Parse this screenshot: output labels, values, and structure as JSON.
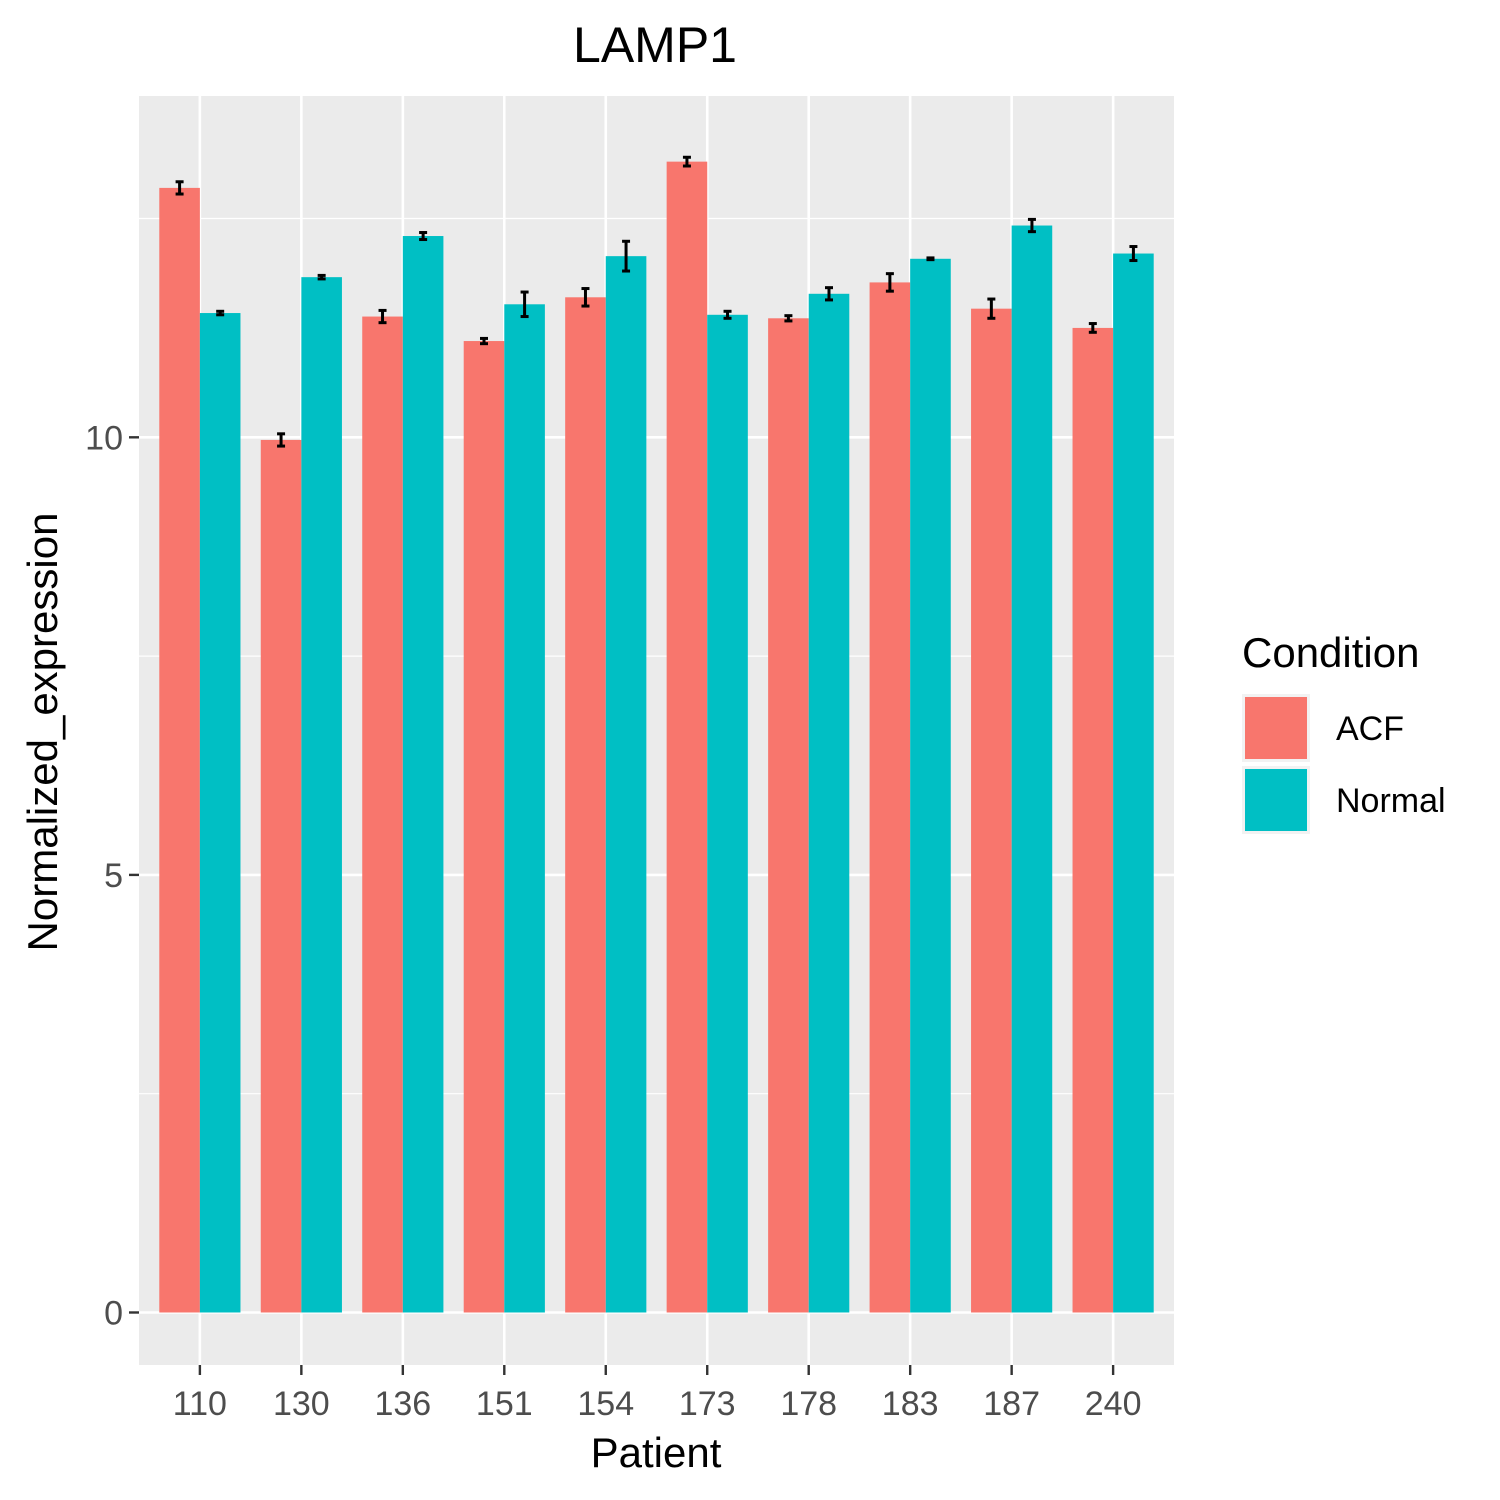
{
  "chart_data": {
    "type": "bar",
    "title": "LAMP1",
    "xlabel": "Patient",
    "ylabel": "Normalized_expression",
    "categories": [
      "110",
      "130",
      "136",
      "151",
      "154",
      "173",
      "178",
      "183",
      "187",
      "240"
    ],
    "series": [
      {
        "name": "ACF",
        "color": "#F8766D",
        "values": [
          12.85,
          9.97,
          11.38,
          11.1,
          11.6,
          13.15,
          11.36,
          11.77,
          11.47,
          11.25
        ],
        "error": [
          0.07,
          0.07,
          0.07,
          0.03,
          0.1,
          0.05,
          0.03,
          0.1,
          0.11,
          0.05
        ]
      },
      {
        "name": "Normal",
        "color": "#00BFC4",
        "values": [
          11.42,
          11.83,
          12.3,
          11.52,
          12.07,
          11.4,
          11.64,
          12.04,
          12.42,
          12.1
        ],
        "error": [
          0.02,
          0.02,
          0.04,
          0.14,
          0.17,
          0.04,
          0.07,
          0.01,
          0.07,
          0.08
        ]
      }
    ],
    "yticks": [
      0,
      5,
      10
    ],
    "ylim": [
      -0.6,
      13.9
    ],
    "grid": true,
    "legend": {
      "title": "Condition",
      "placement": "right"
    }
  }
}
